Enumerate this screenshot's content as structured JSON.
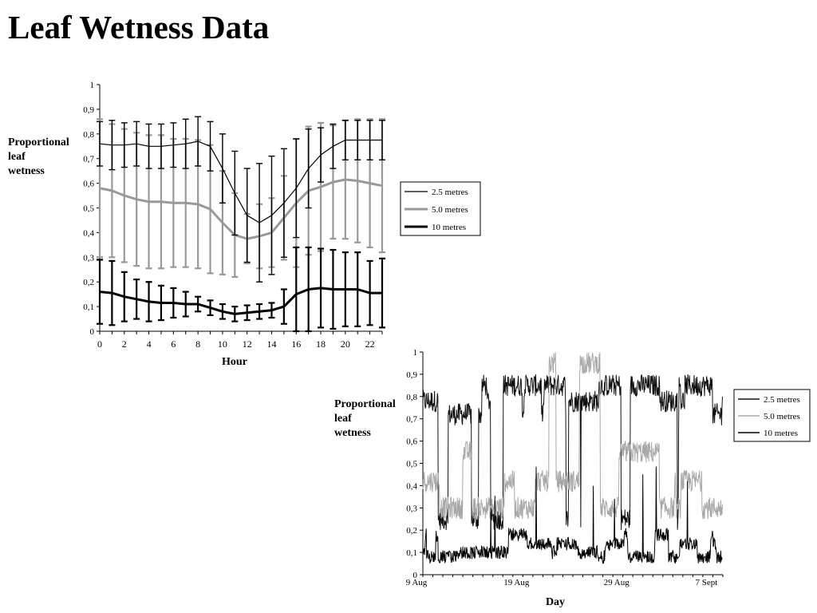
{
  "slide": {
    "title": "Leaf Wetness Data"
  },
  "colors": {
    "2.5 metres": "#000000",
    "5.0 metres": "#999999",
    "10 metres": "#000000",
    "5.0 metres (daily)": "#b3b3b3"
  },
  "chart_data": [
    {
      "type": "line",
      "title": "",
      "xlabel": "Hour",
      "ylabel": "Proportional leaf wetness",
      "xlim": [
        0,
        23
      ],
      "ylim": [
        0,
        1
      ],
      "xticks": [
        "0",
        "2",
        "4",
        "6",
        "8",
        "10",
        "12",
        "14",
        "16",
        "18",
        "20",
        "22"
      ],
      "yticks": [
        "0",
        "0,1",
        "0,2",
        "0,3",
        "0,4",
        "0,5",
        "0,6",
        "0,7",
        "0,8",
        "0,9",
        "1"
      ],
      "error_bars": true,
      "legend": "right",
      "x": [
        0,
        1,
        2,
        3,
        4,
        5,
        6,
        7,
        8,
        9,
        10,
        11,
        12,
        13,
        14,
        15,
        16,
        17,
        18,
        19,
        20,
        21,
        22,
        23
      ],
      "series": [
        {
          "name": "2.5 metres",
          "values": [
            0.76,
            0.755,
            0.755,
            0.76,
            0.75,
            0.75,
            0.755,
            0.76,
            0.77,
            0.75,
            0.66,
            0.56,
            0.47,
            0.44,
            0.47,
            0.52,
            0.58,
            0.66,
            0.715,
            0.75,
            0.775,
            0.775,
            0.775,
            0.775
          ],
          "err": [
            0.09,
            0.1,
            0.09,
            0.09,
            0.09,
            0.09,
            0.09,
            0.1,
            0.1,
            0.1,
            0.14,
            0.17,
            0.19,
            0.24,
            0.24,
            0.22,
            0.2,
            0.16,
            0.11,
            0.09,
            0.08,
            0.08,
            0.08,
            0.08
          ]
        },
        {
          "name": "5.0 metres",
          "values": [
            0.58,
            0.57,
            0.55,
            0.535,
            0.525,
            0.525,
            0.52,
            0.52,
            0.515,
            0.495,
            0.44,
            0.39,
            0.375,
            0.385,
            0.4,
            0.46,
            0.52,
            0.57,
            0.585,
            0.605,
            0.615,
            0.61,
            0.6,
            0.59
          ],
          "err": [
            0.28,
            0.27,
            0.27,
            0.27,
            0.27,
            0.27,
            0.26,
            0.26,
            0.26,
            0.26,
            0.21,
            0.17,
            0.1,
            0.13,
            0.14,
            0.17,
            0.26,
            0.26,
            0.26,
            0.23,
            0.24,
            0.25,
            0.26,
            0.27
          ]
        },
        {
          "name": "10 metres",
          "values": [
            0.16,
            0.155,
            0.14,
            0.13,
            0.12,
            0.115,
            0.115,
            0.11,
            0.11,
            0.095,
            0.08,
            0.07,
            0.075,
            0.08,
            0.085,
            0.1,
            0.15,
            0.17,
            0.175,
            0.17,
            0.17,
            0.17,
            0.155,
            0.155
          ],
          "err": [
            0.13,
            0.13,
            0.1,
            0.08,
            0.08,
            0.07,
            0.06,
            0.05,
            0.03,
            0.03,
            0.03,
            0.03,
            0.03,
            0.03,
            0.03,
            0.07,
            0.19,
            0.17,
            0.16,
            0.16,
            0.15,
            0.15,
            0.13,
            0.14
          ]
        }
      ]
    },
    {
      "type": "line",
      "title": "",
      "xlabel": "Day",
      "ylabel": "Proportional leaf wetness",
      "xlim": [
        "9 Aug",
        "8 Sept"
      ],
      "ylim": [
        0,
        1
      ],
      "xticks": [
        "9 Aug",
        "19 Aug",
        "29 Aug",
        "7 Sept"
      ],
      "yticks": [
        "0",
        "0,1",
        "0,2",
        "0,3",
        "0,4",
        "0,5",
        "0,6",
        "0,7",
        "0,8",
        "0,9",
        "1"
      ],
      "legend": "right",
      "sampling": "hourly",
      "series": [
        {
          "name": "2.5 metres",
          "level_states": [
            0.78,
            0.72,
            0.25,
            0.85
          ]
        },
        {
          "name": "5.0 metres",
          "level_states": [
            0.42,
            0.95,
            0.3,
            0.55
          ]
        },
        {
          "name": "10 metres",
          "level_states": [
            0.1,
            0.08,
            0.14,
            0.18
          ]
        }
      ]
    }
  ]
}
